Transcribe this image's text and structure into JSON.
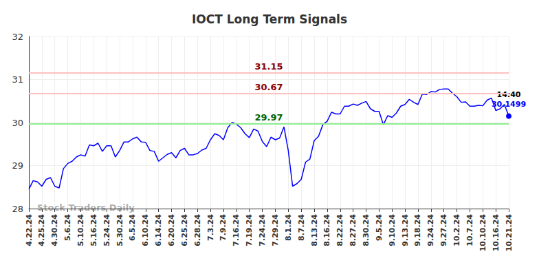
{
  "chart_data": {
    "type": "line",
    "title": "IOCT Long Term Signals",
    "watermark": "Stock Traders Daily",
    "color": "#0000ff",
    "grid": true,
    "ylim": [
      28,
      32
    ],
    "yticks": [
      28,
      29,
      30,
      31,
      32
    ],
    "categories": [
      "4.22.24",
      null,
      null,
      "4.25.24",
      null,
      null,
      "4.30.24",
      null,
      null,
      "5.6.24",
      null,
      null,
      "5.10.24",
      null,
      null,
      "5.16.24",
      null,
      null,
      "5.24.24",
      null,
      null,
      "5.30.24",
      null,
      null,
      "6.5.24",
      null,
      null,
      "6.10.24",
      null,
      null,
      "6.14.24",
      null,
      null,
      "6.20.24",
      null,
      null,
      "6.25.24",
      null,
      null,
      "6.28.24",
      null,
      null,
      "7.3.24",
      null,
      null,
      "7.9.24",
      null,
      null,
      "7.16.24",
      null,
      null,
      "7.19.24",
      null,
      null,
      "7.24.24",
      null,
      null,
      "7.29.24",
      null,
      null,
      "8.1.24",
      null,
      null,
      "8.7.24",
      null,
      null,
      "8.13.24",
      null,
      null,
      "8.16.24",
      null,
      null,
      "8.22.24",
      null,
      null,
      "8.27.24",
      null,
      null,
      "8.30.24",
      null,
      null,
      "9.5.24",
      null,
      null,
      "9.10.24",
      null,
      null,
      "9.13.24",
      null,
      null,
      "9.18.24",
      null,
      null,
      "9.24.24",
      null,
      null,
      "9.27.24",
      null,
      null,
      "10.2.24",
      null,
      null,
      "10.7.24",
      null,
      null,
      "10.10.24",
      null,
      null,
      "10.16.24",
      null,
      null,
      "10.21.24"
    ],
    "values": [
      28.45,
      28.65,
      28.62,
      28.52,
      28.68,
      28.72,
      28.52,
      28.48,
      28.93,
      29.05,
      29.1,
      29.2,
      29.25,
      29.22,
      29.48,
      29.46,
      29.52,
      29.33,
      29.46,
      29.46,
      29.2,
      29.35,
      29.55,
      29.55,
      29.62,
      29.66,
      29.55,
      29.54,
      29.35,
      29.33,
      29.1,
      29.18,
      29.26,
      29.3,
      29.18,
      29.35,
      29.4,
      29.25,
      29.25,
      29.28,
      29.36,
      29.4,
      29.6,
      29.74,
      29.7,
      29.6,
      29.88,
      30.0,
      29.96,
      29.88,
      29.74,
      29.65,
      29.85,
      29.8,
      29.56,
      29.44,
      29.66,
      29.6,
      29.64,
      29.9,
      29.35,
      28.52,
      28.58,
      28.68,
      29.08,
      29.15,
      29.58,
      29.68,
      29.95,
      30.03,
      30.24,
      30.2,
      30.2,
      30.38,
      30.38,
      30.43,
      30.4,
      30.45,
      30.49,
      30.32,
      30.26,
      30.26,
      29.95,
      30.16,
      30.12,
      30.22,
      30.38,
      30.42,
      30.54,
      30.47,
      30.42,
      30.66,
      30.65,
      30.72,
      30.71,
      30.77,
      30.78,
      30.78,
      30.68,
      30.6,
      30.47,
      30.48,
      30.38,
      30.38,
      30.4,
      30.39,
      30.52,
      30.57,
      30.28,
      30.32,
      30.42,
      30.1499
    ],
    "hlines": [
      {
        "value": 31.15,
        "color": "#ffc0c0",
        "label_color": "#8b0000"
      },
      {
        "value": 30.67,
        "color": "#ffc0c0",
        "label_color": "#8b0000"
      },
      {
        "value": 29.97,
        "color": "#90ee90",
        "label_color": "#006400"
      }
    ],
    "annotations": [
      {
        "text": "14:40",
        "x": "10.21.24",
        "y": 30.1499
      }
    ]
  }
}
